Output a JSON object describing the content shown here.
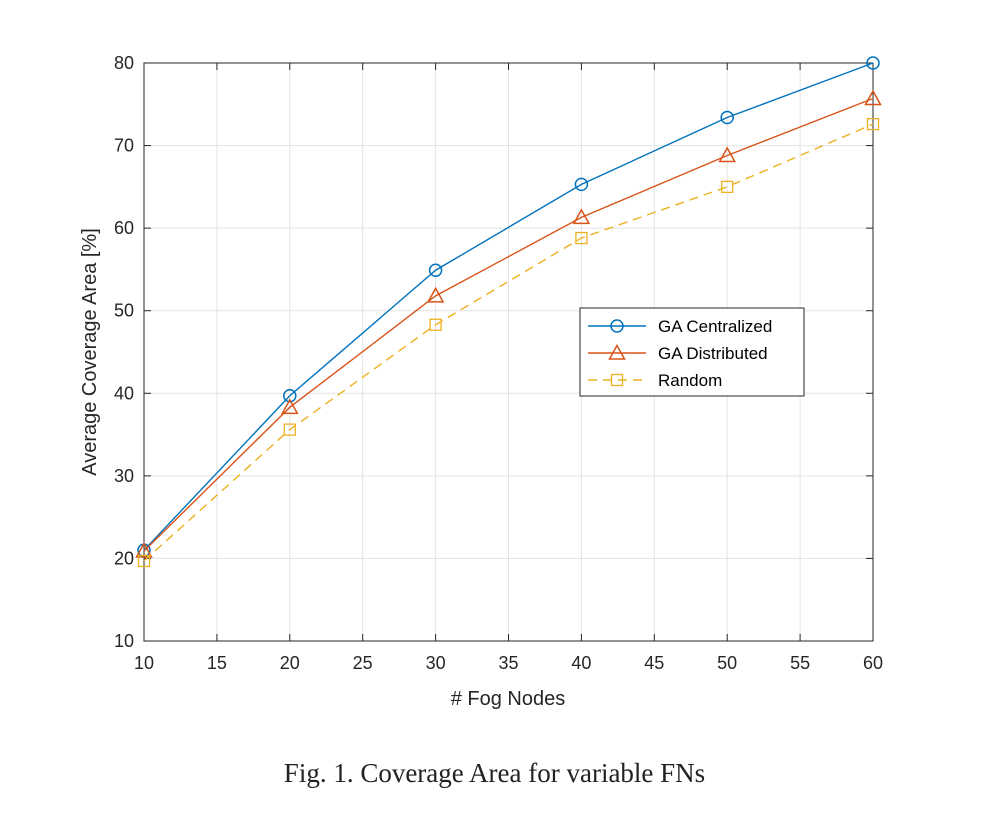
{
  "caption": "Fig. 1.  Coverage Area for variable FNs",
  "chart_data": {
    "type": "line",
    "title": "",
    "xlabel": "# Fog Nodes",
    "ylabel": "Average Coverage Area [%]",
    "xlim": [
      10,
      60
    ],
    "ylim": [
      10,
      80
    ],
    "xticks": [
      10,
      15,
      20,
      25,
      30,
      35,
      40,
      45,
      50,
      55,
      60
    ],
    "yticks": [
      10,
      20,
      30,
      40,
      50,
      60,
      70,
      80
    ],
    "grid": true,
    "legend_position": "center-right",
    "x": [
      10,
      20,
      30,
      40,
      50,
      60
    ],
    "series": [
      {
        "name": "GA Centralized",
        "values": [
          21.0,
          39.7,
          54.9,
          65.3,
          73.4,
          80.0
        ],
        "color": "#0072BD",
        "marker": "circle",
        "line_style": "solid"
      },
      {
        "name": "GA Distributed",
        "values": [
          20.9,
          38.3,
          51.8,
          61.3,
          68.8,
          75.7
        ],
        "color": "#D95319",
        "marker": "triangle",
        "line_style": "solid"
      },
      {
        "name": "Random",
        "values": [
          19.7,
          35.6,
          48.3,
          58.8,
          65.0,
          72.6
        ],
        "color": "#EDB120",
        "marker": "square",
        "line_style": "dashed"
      }
    ]
  }
}
